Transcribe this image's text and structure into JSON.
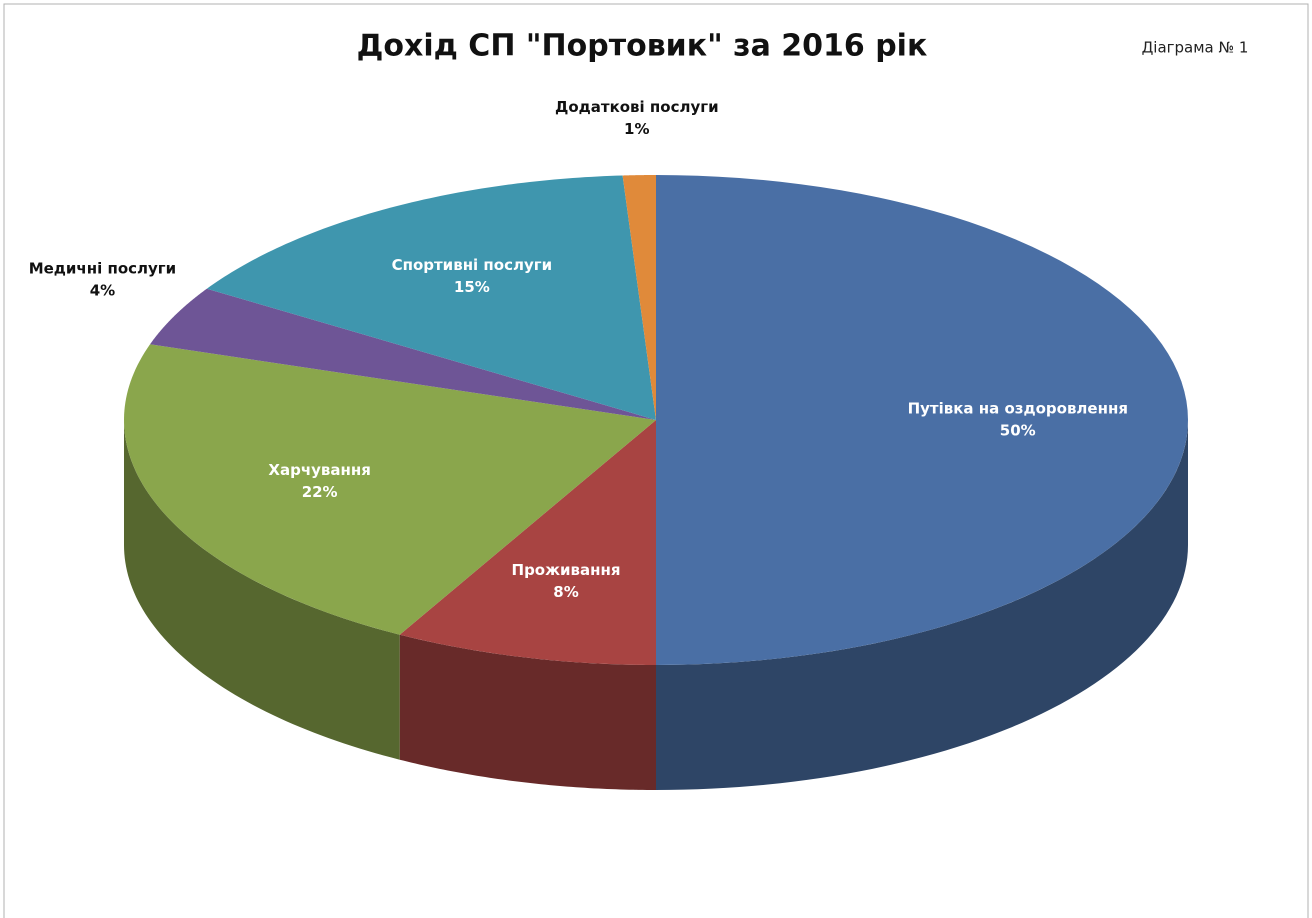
{
  "chart_data": {
    "type": "pie3d",
    "title": "Дохід СП \"Портовик\" за 2016 рік",
    "annotation": "Діаграма  № 1",
    "categories": [
      "Путівка на оздоровлення",
      "Проживання",
      "Харчування",
      "Медичні послуги",
      "Спортивні послуги",
      "Додаткові послуги"
    ],
    "values": [
      50,
      8,
      22,
      4,
      15,
      1
    ],
    "value_labels": [
      "50%",
      "8%",
      "22%",
      "4%",
      "15%",
      "1%"
    ],
    "colors": [
      "#4a6fa5",
      "#a84442",
      "#8aa64c",
      "#6e5596",
      "#3f96ae",
      "#e08a3a"
    ]
  }
}
